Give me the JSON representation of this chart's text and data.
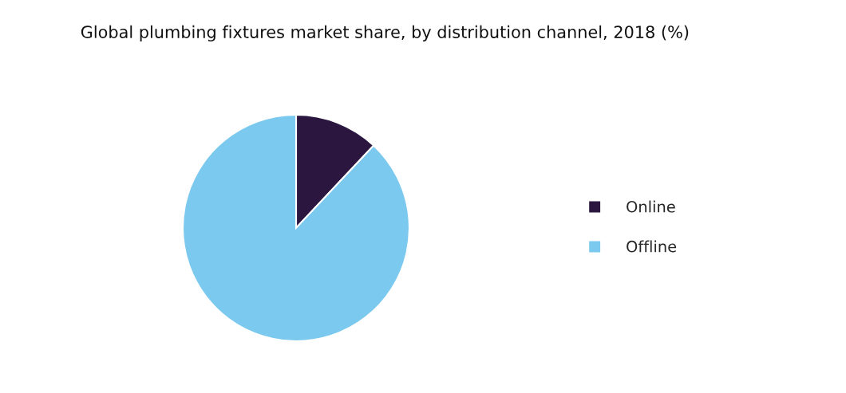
{
  "chart_data": {
    "type": "pie",
    "title": "Global plumbing fixtures market share, by distribution channel, 2018 (%)",
    "categories": [
      "Online",
      "Offline"
    ],
    "values": [
      12,
      88
    ],
    "colors": [
      "#2b1640",
      "#7bc9ee"
    ],
    "legend": "right"
  }
}
